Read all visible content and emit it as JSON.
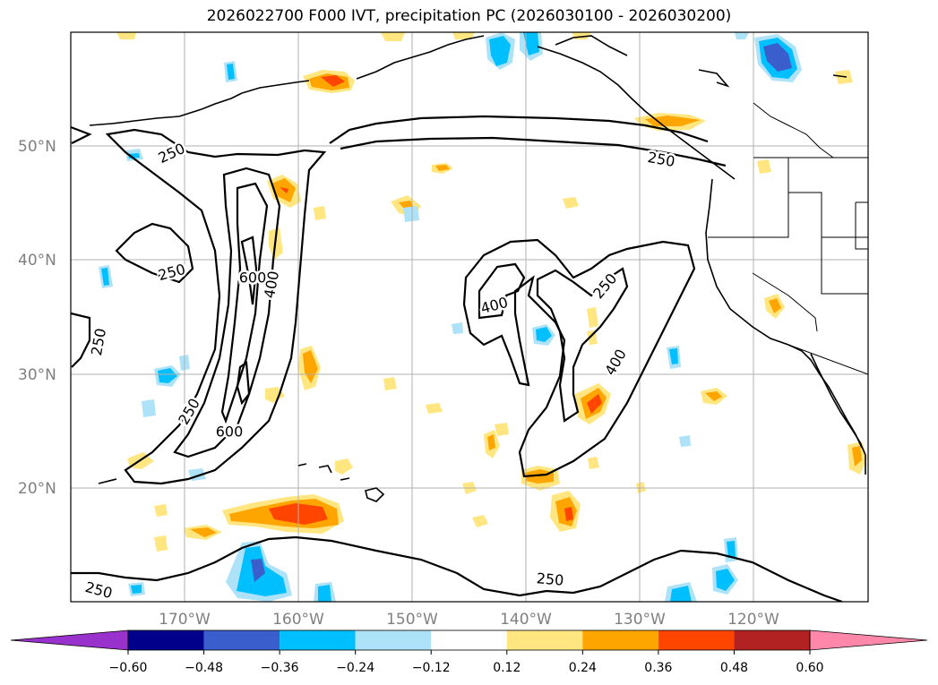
{
  "title": "2026022700 F000 IVT, precipitation PC (2026030100 - 2026030200)",
  "lat_labels": [
    "50°N",
    "40°N",
    "30°N",
    "20°N"
  ],
  "lon_labels": [
    "170°W",
    "160°W",
    "150°W",
    "140°W",
    "130°W",
    "120°W"
  ],
  "colorbar": {
    "ticks": [
      "−0.60",
      "−0.48",
      "−0.36",
      "−0.24",
      "−0.12",
      "0.12",
      "0.24",
      "0.36",
      "0.48",
      "0.60"
    ],
    "colors": [
      "#9932CC",
      "#00008B",
      "#3A5FCD",
      "#00BFFF",
      "#ADE2F8",
      "#FFFFFF",
      "#FFE680",
      "#FFA500",
      "#FF4500",
      "#B22222",
      "#FF88AA"
    ]
  },
  "contour_labels": [
    {
      "text": "250"
    },
    {
      "text": "250"
    },
    {
      "text": "250"
    },
    {
      "text": "600"
    },
    {
      "text": "400"
    },
    {
      "text": "250"
    },
    {
      "text": "600"
    },
    {
      "text": "250"
    },
    {
      "text": "400"
    },
    {
      "text": "250"
    },
    {
      "text": "400"
    },
    {
      "text": "250"
    },
    {
      "text": "250"
    }
  ]
}
